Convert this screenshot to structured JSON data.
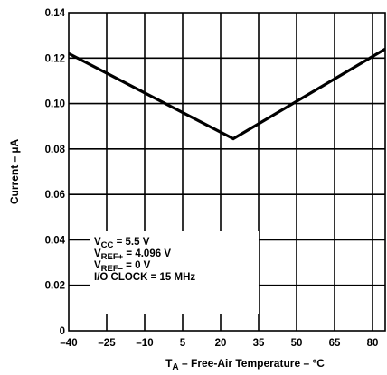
{
  "chart_data": {
    "type": "line",
    "title": "",
    "xlabel": {
      "main": "T",
      "sub": "A",
      "rest": " – Free-Air Temperature – °C"
    },
    "ylabel": "Current – µA",
    "xlim": [
      -40,
      85
    ],
    "ylim": [
      0,
      0.14
    ],
    "x_ticks": [
      -40,
      -25,
      -10,
      5,
      20,
      35,
      50,
      65,
      80
    ],
    "y_ticks": [
      0,
      0.02,
      0.04,
      0.06,
      0.08,
      0.1,
      0.12,
      0.14
    ],
    "x_tick_labels": [
      "–40",
      "–25",
      "–10",
      "5",
      "20",
      "35",
      "50",
      "65",
      "80"
    ],
    "y_tick_labels": [
      "0",
      "0.02",
      "0.04",
      "0.06",
      "0.08",
      "0.10",
      "0.12",
      "0.14"
    ],
    "grid": true,
    "series": [
      {
        "x": [
          -40,
          25,
          85
        ],
        "y": [
          0.122,
          0.0845,
          0.124
        ]
      }
    ],
    "conditions": [
      {
        "main": "V",
        "sub": "CC",
        "rest": " = 5.5 V"
      },
      {
        "main": "V",
        "sub": "REF+",
        "rest": " = 4.096 V"
      },
      {
        "main": "V",
        "sub": "REF–",
        "rest": " = 0 V"
      },
      {
        "main": "I/O CLOCK = 15 MHz",
        "sub": "",
        "rest": ""
      }
    ]
  }
}
